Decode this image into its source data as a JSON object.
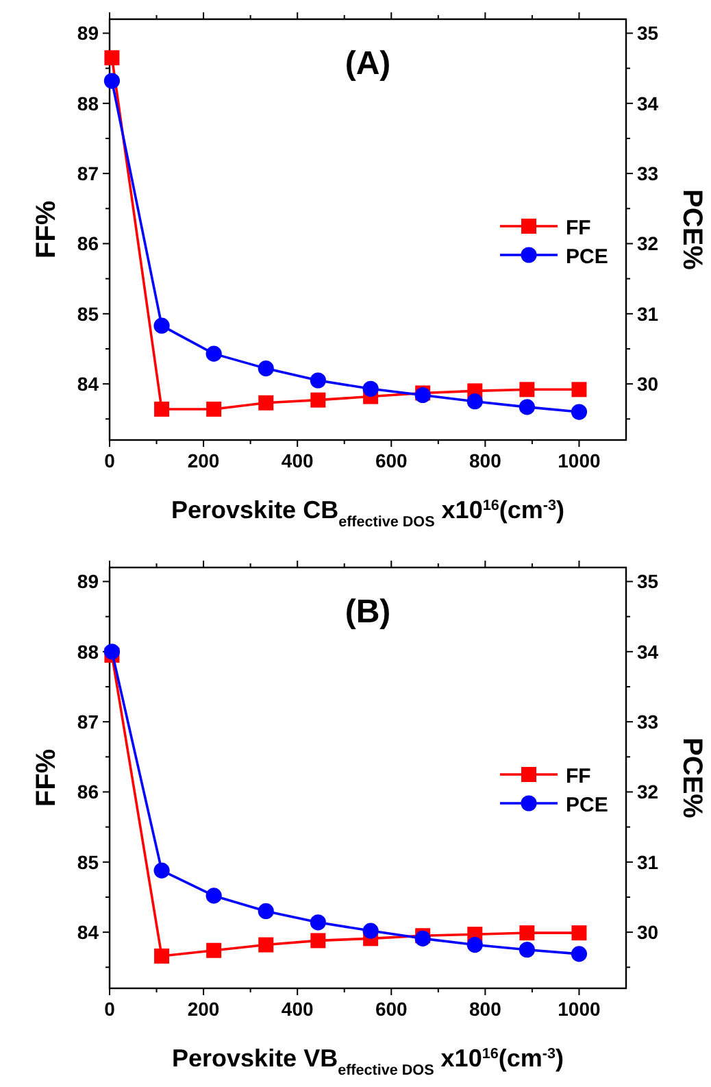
{
  "chart_data": [
    {
      "type": "line",
      "title": "(A)",
      "xlabel": "Perovskite CB$_{effective DOS}$ x10$^{16}$(cm$^{-3}$)",
      "ylabel": "FF%",
      "y2label": "PCE%",
      "x": [
        5,
        111,
        222,
        333,
        444,
        556,
        667,
        778,
        889,
        1000
      ],
      "series": [
        {
          "name": "FF",
          "color": "#ff0000",
          "marker": "square",
          "values": [
            88.65,
            83.64,
            83.64,
            83.73,
            83.77,
            83.82,
            83.87,
            83.9,
            83.92,
            83.92
          ]
        },
        {
          "name": "PCE",
          "color": "#0000ff",
          "marker": "circle",
          "axis": "y2",
          "values": [
            34.32,
            30.83,
            30.43,
            30.22,
            30.05,
            29.93,
            29.84,
            29.75,
            29.67,
            29.6
          ]
        }
      ],
      "xlim": [
        0,
        1100
      ],
      "ylim": [
        83.2,
        89.2
      ],
      "y2lim": [
        29.2,
        35.2
      ],
      "xticks": [
        0,
        {
          "value": 100,
          "label": null
        },
        200,
        {
          "value": 300,
          "label": null
        },
        400,
        {
          "value": 500,
          "label": null
        },
        600,
        {
          "value": 700,
          "label": null
        },
        800,
        {
          "value": 900,
          "label": null
        },
        1000
      ],
      "yticks": [
        {
          "value": 83.5,
          "label": null
        },
        84,
        {
          "value": 84.5,
          "label": null
        },
        85,
        {
          "value": 85.5,
          "label": null
        },
        86,
        {
          "value": 86.5,
          "label": null
        },
        87,
        {
          "value": 87.5,
          "label": null
        },
        88,
        {
          "value": 88.5,
          "label": null
        },
        89
      ],
      "y2ticks": [
        {
          "value": 29.5,
          "label": null
        },
        30,
        {
          "value": 30.5,
          "label": null
        },
        31,
        {
          "value": 31.5,
          "label": null
        },
        32,
        {
          "value": 32.5,
          "label": null
        },
        33,
        {
          "value": 33.5,
          "label": null
        },
        34,
        {
          "value": 34.5,
          "label": null
        },
        35
      ],
      "legend": "right",
      "line_style": "solid",
      "grid": false
    },
    {
      "type": "line",
      "title": "(B)",
      "xlabel": "Perovskite VB$_{effective DOS}$ x10$^{16}$(cm$^{-3}$)",
      "ylabel": "FF%",
      "y2label": "PCE%",
      "x": [
        5,
        111,
        222,
        333,
        444,
        556,
        667,
        778,
        889,
        1000
      ],
      "series": [
        {
          "name": "FF",
          "color": "#ff0000",
          "marker": "square",
          "values": [
            87.95,
            83.66,
            83.74,
            83.82,
            83.88,
            83.91,
            83.95,
            83.97,
            83.99,
            83.99
          ]
        },
        {
          "name": "PCE",
          "color": "#0000ff",
          "marker": "circle",
          "axis": "y2",
          "values": [
            34.0,
            30.88,
            30.52,
            30.3,
            30.14,
            30.02,
            29.91,
            29.82,
            29.75,
            29.69
          ]
        }
      ],
      "xlim": [
        0,
        1100
      ],
      "ylim": [
        83.2,
        89.2
      ],
      "y2lim": [
        29.2,
        35.2
      ],
      "xticks": [
        0,
        {
          "value": 100,
          "label": null
        },
        200,
        {
          "value": 300,
          "label": null
        },
        400,
        {
          "value": 500,
          "label": null
        },
        600,
        {
          "value": 700,
          "label": null
        },
        800,
        {
          "value": 900,
          "label": null
        },
        1000
      ],
      "yticks": [
        {
          "value": 83.5,
          "label": null
        },
        84,
        {
          "value": 84.5,
          "label": null
        },
        85,
        {
          "value": 85.5,
          "label": null
        },
        86,
        {
          "value": 86.5,
          "label": null
        },
        87,
        {
          "value": 87.5,
          "label": null
        },
        88,
        {
          "value": 88.5,
          "label": null
        },
        89
      ],
      "y2ticks": [
        {
          "value": 29.5,
          "label": null
        },
        30,
        {
          "value": 30.5,
          "label": null
        },
        31,
        {
          "value": 31.5,
          "label": null
        },
        32,
        {
          "value": 32.5,
          "label": null
        },
        33,
        {
          "value": 33.5,
          "label": null
        },
        34,
        {
          "value": 34.5,
          "label": null
        },
        35
      ],
      "legend": "right",
      "line_style": "solid",
      "grid": false
    }
  ]
}
